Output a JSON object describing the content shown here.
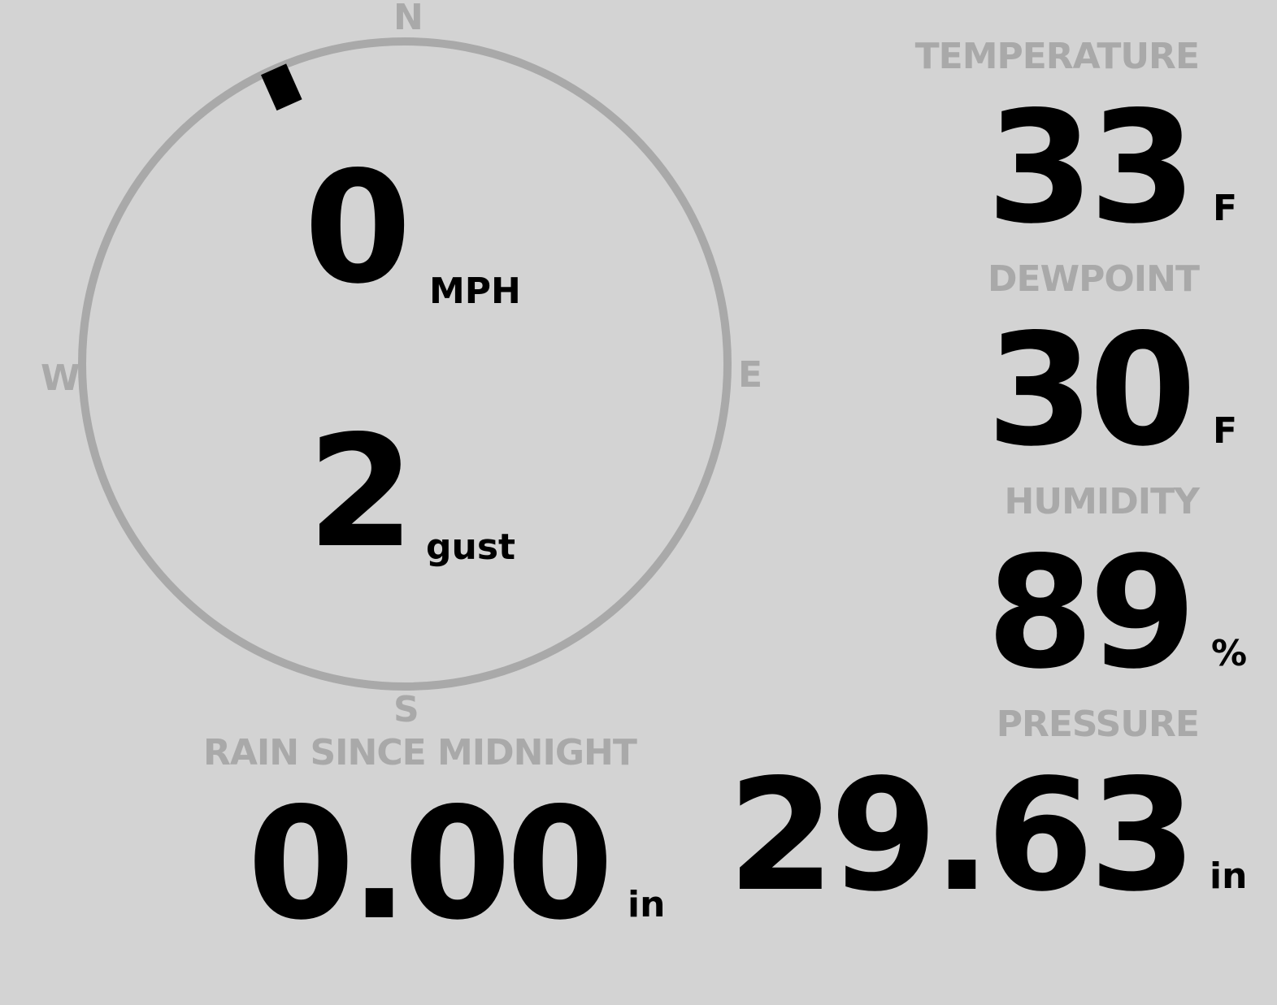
{
  "wind": {
    "speed": "0",
    "speed_unit": "MPH",
    "gust": "2",
    "gust_unit": "gust",
    "direction_degrees": 336,
    "compass": {
      "n": "N",
      "e": "E",
      "s": "S",
      "w": "W"
    }
  },
  "temperature": {
    "label": "TEMPERATURE",
    "value": "33",
    "unit": "F"
  },
  "dewpoint": {
    "label": "DEWPOINT",
    "value": "30",
    "unit": "F"
  },
  "humidity": {
    "label": "HUMIDITY",
    "value": "89",
    "unit": "%"
  },
  "rain": {
    "label": "RAIN SINCE MIDNIGHT",
    "value": "0.00",
    "unit": "in"
  },
  "pressure": {
    "label": "PRESSURE",
    "value": "29.63",
    "unit": "in"
  },
  "colors": {
    "background": "#d3d3d3",
    "muted": "#a9a9a9",
    "text": "#000000"
  }
}
